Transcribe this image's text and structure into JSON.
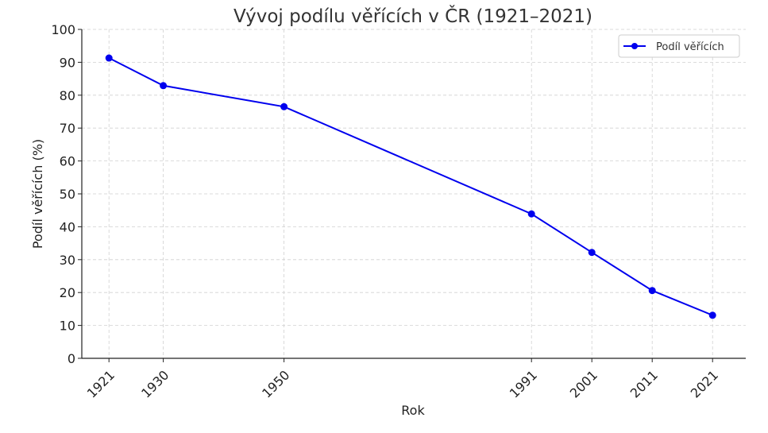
{
  "chart_data": {
    "type": "line",
    "title": "Vývoj podílu věřících v ČR (1921–2021)",
    "xlabel": "Rok",
    "ylabel": "Podíl věřících (%)",
    "x": [
      1921,
      1930,
      1950,
      1991,
      2001,
      2011,
      2021
    ],
    "xlim": [
      1916.5,
      2026.5
    ],
    "ylim": [
      0,
      100
    ],
    "yticks": [
      0,
      10,
      20,
      30,
      40,
      50,
      60,
      70,
      80,
      90,
      100
    ],
    "grid": true,
    "legend_position": "top-right",
    "series": [
      {
        "name": "Podíl věřících",
        "color": "#0000ee",
        "marker": "circle",
        "values": [
          91.3,
          82.9,
          76.5,
          43.9,
          32.2,
          20.6,
          13.1
        ]
      }
    ]
  }
}
